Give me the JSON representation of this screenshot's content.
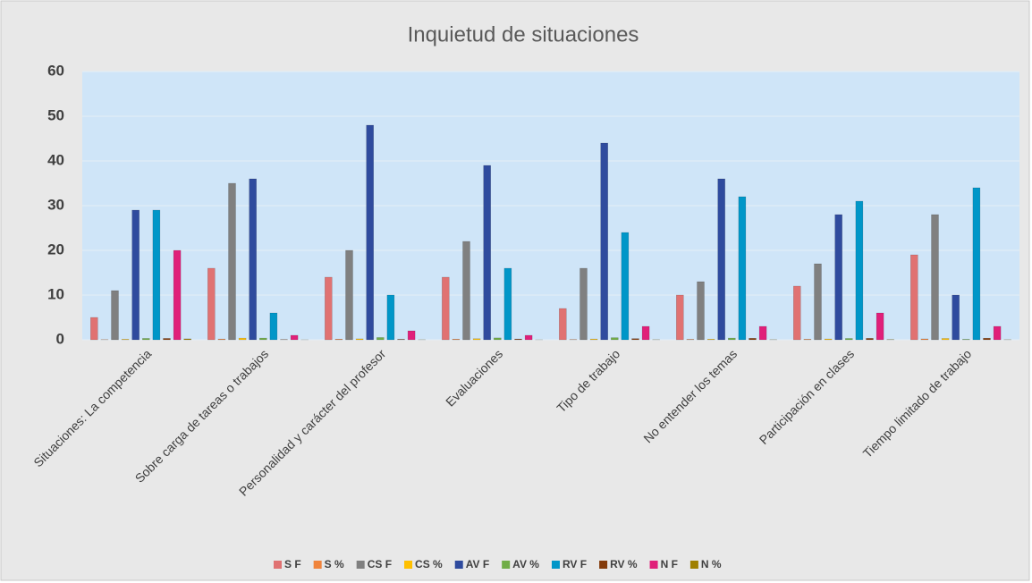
{
  "chart_data": {
    "type": "bar",
    "title": "Inquietud de situaciones",
    "categories": [
      "Situaciones: La competencia",
      "Sobre carga de tareas o trabajos",
      "Personalidad y carácter del profesor",
      "Evaluaciones",
      "Tipo de trabajo",
      "No entender los temas",
      "Participación en clases",
      "Tiempo limitado de trabajo"
    ],
    "series": [
      {
        "name": "S F",
        "color": "#e07272",
        "values": [
          5,
          16,
          14,
          14,
          7,
          10,
          12,
          19
        ]
      },
      {
        "name": "S %",
        "color": "#f0843c",
        "values": [
          0.05,
          0.17,
          0.15,
          0.15,
          0.07,
          0.11,
          0.13,
          0.2
        ]
      },
      {
        "name": "CS F",
        "color": "#808080",
        "values": [
          11,
          35,
          20,
          22,
          16,
          13,
          17,
          28
        ]
      },
      {
        "name": "CS %",
        "color": "#ffc000",
        "values": [
          0.12,
          0.37,
          0.21,
          0.24,
          0.17,
          0.14,
          0.18,
          0.3
        ]
      },
      {
        "name": "AV F",
        "color": "#2f4b9e",
        "values": [
          29,
          36,
          48,
          39,
          44,
          36,
          28,
          10
        ]
      },
      {
        "name": "AV %",
        "color": "#70ad47",
        "values": [
          0.31,
          0.38,
          0.51,
          0.42,
          0.47,
          0.38,
          0.3,
          0.11
        ]
      },
      {
        "name": "RV F",
        "color": "#0096c8",
        "values": [
          29,
          6,
          10,
          16,
          24,
          32,
          31,
          34
        ]
      },
      {
        "name": "RV %",
        "color": "#843c0c",
        "values": [
          0.31,
          0.06,
          0.11,
          0.17,
          0.26,
          0.34,
          0.33,
          0.36
        ]
      },
      {
        "name": "N F",
        "color": "#e0207a",
        "values": [
          20,
          1,
          2,
          1,
          3,
          3,
          6,
          3
        ]
      },
      {
        "name": "N %",
        "color": "#a08000",
        "values": [
          0.21,
          0.01,
          0.02,
          0.01,
          0.03,
          0.03,
          0.06,
          0.03
        ]
      }
    ],
    "ylim": [
      0,
      60
    ],
    "yticks": [
      0,
      10,
      20,
      30,
      40,
      50,
      60
    ],
    "grid": true,
    "legend": "bottom"
  }
}
